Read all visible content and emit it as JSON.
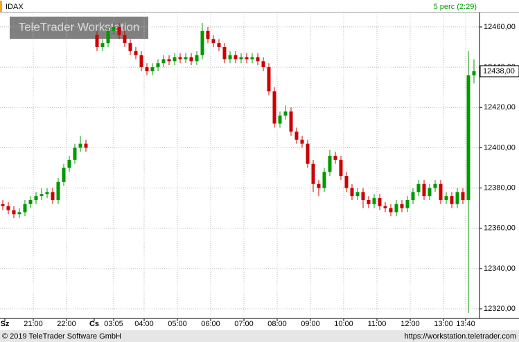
{
  "chart_data": {
    "type": "candlestick",
    "title": "IDAX",
    "subtitle": "5 perc (2:29)",
    "watermark": "TeleTrader Workstation",
    "footer_left": "© 2019 TeleTrader Software GmbH",
    "footer_right": "https://workstation.teletrader.com",
    "up_color": "#009900",
    "down_color": "#cc0000",
    "grid": true,
    "x": [
      0,
      1,
      2,
      3,
      4,
      5,
      6,
      7,
      8,
      9,
      10,
      11,
      12,
      13,
      14,
      15,
      17,
      18,
      19,
      20,
      21,
      22,
      23,
      24,
      25,
      26,
      27,
      28,
      29,
      30,
      31,
      32,
      33,
      34,
      35,
      36,
      37,
      38,
      39,
      40,
      41,
      42,
      43,
      44,
      45,
      46,
      47,
      48,
      49,
      50,
      51,
      52,
      53,
      54,
      55,
      56,
      57,
      58,
      59,
      60,
      61,
      62,
      63,
      64,
      65,
      66,
      67,
      68,
      69,
      70,
      71,
      72,
      73,
      74,
      75,
      76,
      77,
      78,
      79,
      80,
      81,
      82,
      83,
      84,
      85
    ],
    "open": [
      12372,
      12371,
      12369,
      12367,
      12368,
      12372,
      12374,
      12376,
      12377,
      12378,
      12374,
      12383,
      12390,
      12394,
      12400,
      12402,
      12456,
      12450,
      12452,
      12458,
      12460,
      12456,
      12452,
      12448,
      12446,
      12440,
      12438,
      12440,
      12442,
      12444,
      12443,
      12445,
      12444,
      12445,
      12443,
      12446,
      12458,
      12454,
      12452,
      12450,
      12444,
      12446,
      12444,
      12445,
      12444,
      12445,
      12443,
      12440,
      12428,
      12412,
      12416,
      12418,
      12408,
      12404,
      12402,
      12392,
      12382,
      12380,
      12388,
      12396,
      12394,
      12386,
      12380,
      12376,
      12378,
      12374,
      12372,
      12375,
      12371,
      12370,
      12368,
      12372,
      12370,
      12374,
      12378,
      12382,
      12376,
      12380,
      12382,
      12374,
      12376,
      12372,
      12378,
      12374,
      12436
    ],
    "high": [
      12374,
      12373,
      12371,
      12370,
      12374,
      12376,
      12378,
      12380,
      12380,
      12380,
      12385,
      12392,
      12396,
      12402,
      12406,
      12404,
      12458,
      12454,
      12460,
      12462,
      12462,
      12458,
      12454,
      12450,
      12448,
      12442,
      12442,
      12444,
      12446,
      12446,
      12447,
      12447,
      12447,
      12447,
      12448,
      12462,
      12460,
      12456,
      12454,
      12452,
      12448,
      12448,
      12447,
      12447,
      12447,
      12447,
      12445,
      12442,
      12430,
      12418,
      12421,
      12420,
      12410,
      12406,
      12404,
      12394,
      12384,
      12390,
      12399,
      12398,
      12396,
      12388,
      12382,
      12380,
      12380,
      12376,
      12377,
      12377,
      12373,
      12372,
      12374,
      12374,
      12376,
      12380,
      12384,
      12384,
      12382,
      12384,
      12384,
      12378,
      12378,
      12380,
      12380,
      12448,
      12444
    ],
    "low": [
      12369,
      12367,
      12365,
      12365,
      12366,
      12370,
      12372,
      12374,
      12375,
      12372,
      12372,
      12381,
      12388,
      12392,
      12398,
      12398,
      12448,
      12448,
      12450,
      12456,
      12454,
      12450,
      12446,
      12444,
      12438,
      12436,
      12436,
      12438,
      12440,
      12441,
      12441,
      12442,
      12442,
      12441,
      12441,
      12444,
      12452,
      12450,
      12448,
      12442,
      12442,
      12442,
      12442,
      12442,
      12442,
      12441,
      12438,
      12426,
      12410,
      12410,
      12414,
      12406,
      12402,
      12400,
      12390,
      12378,
      12376,
      12378,
      12386,
      12392,
      12384,
      12378,
      12374,
      12374,
      12370,
      12370,
      12370,
      12369,
      12368,
      12366,
      12366,
      12368,
      12368,
      12372,
      12376,
      12374,
      12374,
      12378,
      12372,
      12372,
      12370,
      12370,
      12372,
      12318,
      12432
    ],
    "close": [
      12371,
      12369,
      12367,
      12368,
      12372,
      12374,
      12376,
      12377,
      12378,
      12374,
      12383,
      12390,
      12394,
      12400,
      12402,
      12400,
      12450,
      12452,
      12458,
      12460,
      12456,
      12452,
      12448,
      12446,
      12440,
      12438,
      12440,
      12442,
      12444,
      12443,
      12445,
      12444,
      12445,
      12443,
      12446,
      12458,
      12454,
      12452,
      12450,
      12444,
      12446,
      12444,
      12445,
      12444,
      12445,
      12443,
      12440,
      12428,
      12412,
      12416,
      12418,
      12408,
      12404,
      12402,
      12392,
      12382,
      12380,
      12388,
      12396,
      12394,
      12386,
      12380,
      12376,
      12378,
      12374,
      12372,
      12375,
      12371,
      12370,
      12368,
      12372,
      12370,
      12374,
      12378,
      12382,
      12376,
      12380,
      12382,
      12374,
      12376,
      12372,
      12378,
      12374,
      12436,
      12438
    ],
    "last_price_label": "12438,00",
    "xlim": [
      -0.5,
      86
    ],
    "ylim": [
      12315.2,
      12467.2
    ],
    "xticks": [
      {
        "value": 0.375,
        "label": "Sz"
      },
      {
        "value": 5.5,
        "label": "21:00"
      },
      {
        "value": 11.5,
        "label": "22:00"
      },
      {
        "value": 16.5,
        "label": "Cs"
      },
      {
        "value": 20,
        "label": "03:05"
      },
      {
        "value": 25.5,
        "label": "04:00"
      },
      {
        "value": 31.5,
        "label": "05:00"
      },
      {
        "value": 37.5,
        "label": "06:00"
      },
      {
        "value": 43.5,
        "label": "07:00"
      },
      {
        "value": 49.5,
        "label": "08:00"
      },
      {
        "value": 55.5,
        "label": "09:00"
      },
      {
        "value": 61.5,
        "label": "10:00"
      },
      {
        "value": 67.5,
        "label": "11:00"
      },
      {
        "value": 73.5,
        "label": "12:00"
      },
      {
        "value": 79.5,
        "label": "13:00"
      },
      {
        "value": 83.5,
        "label": "13:40"
      }
    ],
    "yticks": [
      {
        "value": 12320,
        "label": "12320,00"
      },
      {
        "value": 12340,
        "label": "12340,00"
      },
      {
        "value": 12360,
        "label": "12360,00"
      },
      {
        "value": 12380,
        "label": "12380,00"
      },
      {
        "value": 12400,
        "label": "12400,00"
      },
      {
        "value": 12420,
        "label": "12420,00"
      },
      {
        "value": 12440,
        "label": "12440,00"
      },
      {
        "value": 12460,
        "label": "12460,00"
      }
    ]
  }
}
